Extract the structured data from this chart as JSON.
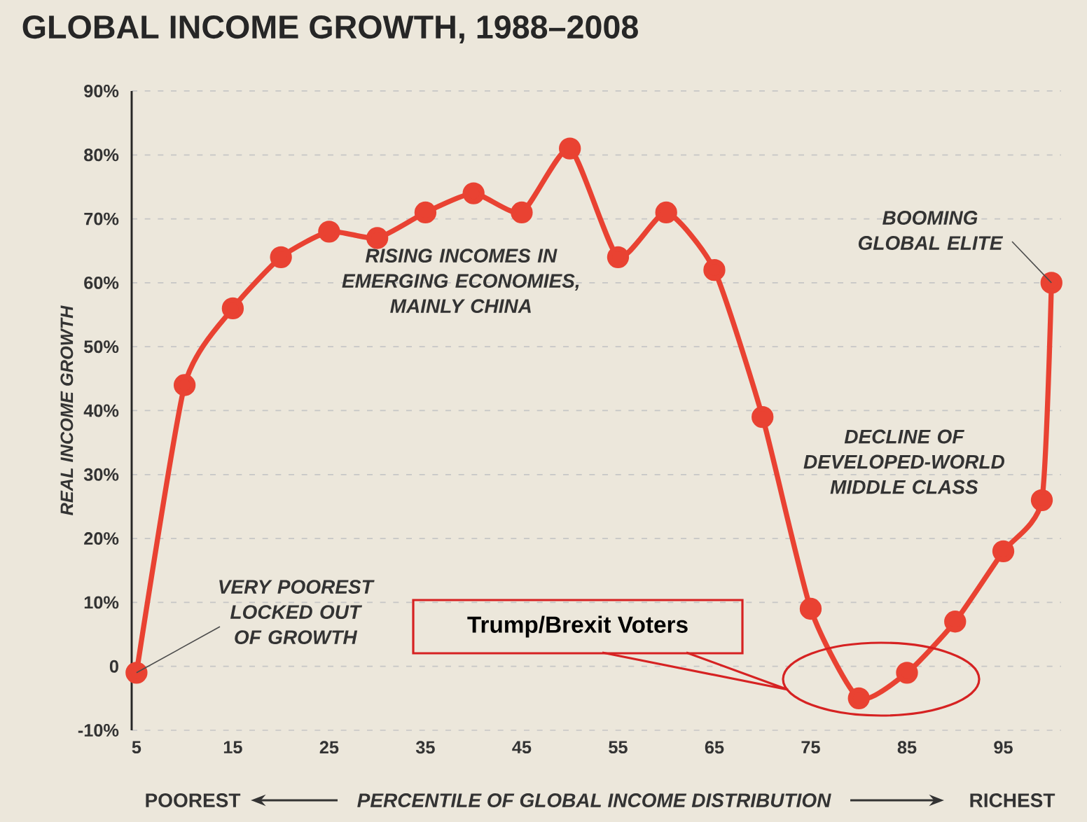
{
  "chart_data": {
    "type": "line",
    "title": "GLOBAL INCOME GROWTH, 1988–2008",
    "xlabel": "PERCENTILE OF GLOBAL INCOME DISTRIBUTION",
    "ylabel": "REAL INCOME GROWTH",
    "x": [
      5,
      10,
      15,
      20,
      25,
      30,
      35,
      40,
      45,
      50,
      55,
      60,
      65,
      70,
      75,
      80,
      85,
      90,
      95,
      99,
      100
    ],
    "values": [
      -1,
      44,
      56,
      64,
      68,
      67,
      71,
      74,
      71,
      81,
      64,
      71,
      62,
      39,
      9,
      -5,
      -1,
      7,
      18,
      26,
      60
    ],
    "color": "#e94232",
    "marker": "circle",
    "line_style": "solid",
    "grid": "y",
    "xlim": [
      4.5,
      101
    ],
    "xticks": [
      5,
      15,
      25,
      35,
      45,
      55,
      65,
      75,
      85,
      95
    ],
    "ylim": [
      -10,
      90
    ],
    "yticks": [
      {
        "value": -10,
        "label": "-10%"
      },
      0,
      {
        "value": 10,
        "label": "10%"
      },
      {
        "value": 20,
        "label": "20%"
      },
      {
        "value": 30,
        "label": "30%"
      },
      {
        "value": 40,
        "label": "40%"
      },
      {
        "value": 50,
        "label": "50%"
      },
      {
        "value": 60,
        "label": "60%"
      },
      {
        "value": 70,
        "label": "70%"
      },
      {
        "value": 80,
        "label": "80%"
      },
      {
        "value": 90,
        "label": "90%"
      }
    ],
    "annotations": [
      {
        "text": "VERY POOREST LOCKED OUT OF GROWTH",
        "x": 5,
        "y": -1
      },
      "RISING INCOMES IN EMERGING ECONOMIES, MAINLY CHINA",
      {
        "text": "BOOMING GLOBAL ELITE",
        "x": 100,
        "y": 60
      },
      "DECLINE OF DEVELOPED-WORLD MIDDLE CLASS",
      "Trump/Brexit Voters",
      "POOREST",
      "RICHEST"
    ]
  }
}
